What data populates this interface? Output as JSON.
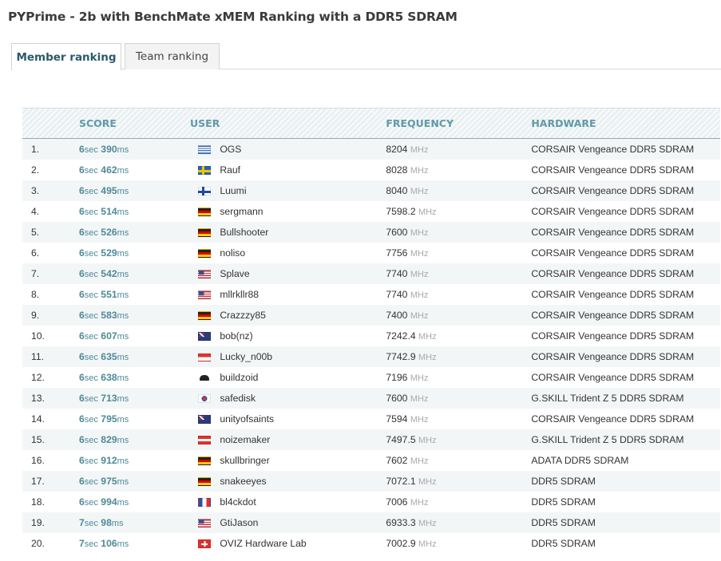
{
  "page": {
    "title": "PYPrime - 2b with BenchMate xMEM Ranking with a DDR5 SDRAM"
  },
  "tabs": [
    {
      "label": "Member ranking",
      "active": true
    },
    {
      "label": "Team ranking",
      "active": false
    }
  ],
  "table": {
    "headers": {
      "score": "SCORE",
      "user": "USER",
      "frequency": "FREQUENCY",
      "hardware": "HARDWARE"
    },
    "rows": [
      {
        "rank": "1.",
        "sec": "6",
        "ms": "390",
        "flag": "gr",
        "user": "OGS",
        "freq": "8204",
        "hardware": "CORSAIR Vengeance DDR5 SDRAM"
      },
      {
        "rank": "2.",
        "sec": "6",
        "ms": "462",
        "flag": "se",
        "user": "Rauf",
        "freq": "8028",
        "hardware": "CORSAIR Vengeance DDR5 SDRAM"
      },
      {
        "rank": "3.",
        "sec": "6",
        "ms": "495",
        "flag": "fi",
        "user": "Luumi",
        "freq": "8040",
        "hardware": "CORSAIR Vengeance DDR5 SDRAM"
      },
      {
        "rank": "4.",
        "sec": "6",
        "ms": "514",
        "flag": "de",
        "user": "sergmann",
        "freq": "7598.2",
        "hardware": "CORSAIR Vengeance DDR5 SDRAM"
      },
      {
        "rank": "5.",
        "sec": "6",
        "ms": "526",
        "flag": "de",
        "user": "Bullshooter",
        "freq": "7600",
        "hardware": "CORSAIR Vengeance DDR5 SDRAM"
      },
      {
        "rank": "6.",
        "sec": "6",
        "ms": "529",
        "flag": "de",
        "user": "noliso",
        "freq": "7756",
        "hardware": "CORSAIR Vengeance DDR5 SDRAM"
      },
      {
        "rank": "7.",
        "sec": "6",
        "ms": "542",
        "flag": "us",
        "user": "Splave",
        "freq": "7740",
        "hardware": "CORSAIR Vengeance DDR5 SDRAM"
      },
      {
        "rank": "8.",
        "sec": "6",
        "ms": "551",
        "flag": "us",
        "user": "mllrkllr88",
        "freq": "7740",
        "hardware": "CORSAIR Vengeance DDR5 SDRAM"
      },
      {
        "rank": "9.",
        "sec": "6",
        "ms": "583",
        "flag": "de",
        "user": "Crazzzy85",
        "freq": "7400",
        "hardware": "CORSAIR Vengeance DDR5 SDRAM"
      },
      {
        "rank": "10.",
        "sec": "6",
        "ms": "607",
        "flag": "nz",
        "user": "bob(nz)",
        "freq": "7242.4",
        "hardware": "CORSAIR Vengeance DDR5 SDRAM"
      },
      {
        "rank": "11.",
        "sec": "6",
        "ms": "635",
        "flag": "id",
        "user": "Lucky_n00b",
        "freq": "7742.9",
        "hardware": "CORSAIR Vengeance DDR5 SDRAM"
      },
      {
        "rank": "12.",
        "sec": "6",
        "ms": "638",
        "flag": "pirate",
        "user": "buildzoid",
        "freq": "7196",
        "hardware": "CORSAIR Vengeance DDR5 SDRAM"
      },
      {
        "rank": "13.",
        "sec": "6",
        "ms": "713",
        "flag": "kr",
        "user": "safedisk",
        "freq": "7600",
        "hardware": "G.SKILL Trident Z 5 DDR5 SDRAM"
      },
      {
        "rank": "14.",
        "sec": "6",
        "ms": "795",
        "flag": "au",
        "user": "unityofsaints",
        "freq": "7594",
        "hardware": "CORSAIR Vengeance DDR5 SDRAM"
      },
      {
        "rank": "15.",
        "sec": "6",
        "ms": "829",
        "flag": "at",
        "user": "noizemaker",
        "freq": "7497.5",
        "hardware": "G.SKILL Trident Z 5 DDR5 SDRAM"
      },
      {
        "rank": "16.",
        "sec": "6",
        "ms": "912",
        "flag": "de",
        "user": "skullbringer",
        "freq": "7602",
        "hardware": "ADATA DDR5 SDRAM"
      },
      {
        "rank": "17.",
        "sec": "6",
        "ms": "975",
        "flag": "de",
        "user": "snakeeyes",
        "freq": "7072.1",
        "hardware": "DDR5 SDRAM"
      },
      {
        "rank": "18.",
        "sec": "6",
        "ms": "994",
        "flag": "fr",
        "user": "bl4ckdot",
        "freq": "7006",
        "hardware": "DDR5 SDRAM"
      },
      {
        "rank": "19.",
        "sec": "7",
        "ms": "98",
        "flag": "us",
        "user": "GtiJason",
        "freq": "6933.3",
        "hardware": "DDR5 SDRAM"
      },
      {
        "rank": "20.",
        "sec": "7",
        "ms": "106",
        "flag": "ch",
        "user": "OVIZ Hardware Lab",
        "freq": "7002.9",
        "hardware": "DDR5 SDRAM"
      }
    ],
    "units": {
      "sec": "sec",
      "ms": "ms",
      "freq": "MHz"
    }
  }
}
